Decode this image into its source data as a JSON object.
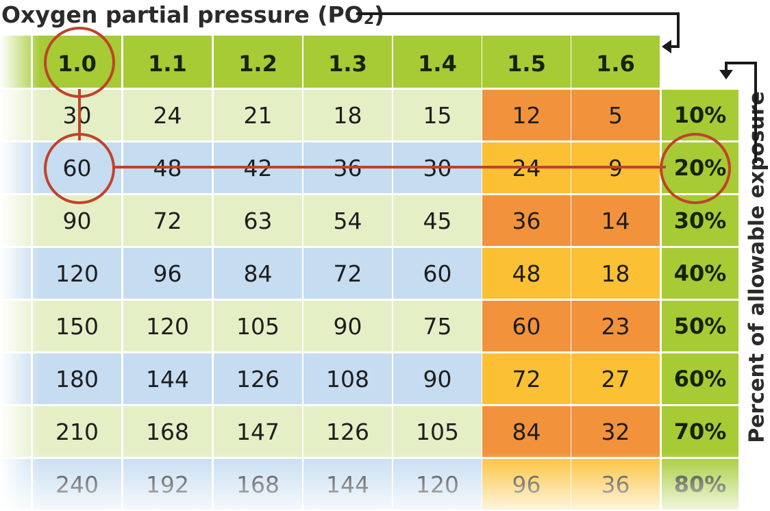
{
  "title": {
    "text": "Oxygen partial pressure (PO",
    "subscript": "2",
    "suffix": ")"
  },
  "side_label": "Percent of allowable exposure",
  "colors": {
    "header_green": "#a6cb35",
    "row_light_green": "#e5efc6",
    "row_blue": "#c5dcf1",
    "orange": "#f2923b",
    "yellow": "#fbc033",
    "highlight_red": "#c0422a"
  },
  "chart_data": {
    "type": "table",
    "columns": [
      "1.0",
      "1.1",
      "1.2",
      "1.3",
      "1.4",
      "1.5",
      "1.6"
    ],
    "row_labels": [
      "10%",
      "20%",
      "30%",
      "40%",
      "50%",
      "60%",
      "70%",
      "80%"
    ],
    "rows": [
      [
        30,
        24,
        21,
        18,
        15,
        12,
        5
      ],
      [
        60,
        48,
        42,
        36,
        30,
        24,
        9
      ],
      [
        90,
        72,
        63,
        54,
        45,
        36,
        14
      ],
      [
        120,
        96,
        84,
        72,
        60,
        48,
        18
      ],
      [
        150,
        120,
        105,
        90,
        75,
        60,
        23
      ],
      [
        180,
        144,
        126,
        108,
        90,
        72,
        27
      ],
      [
        210,
        168,
        147,
        126,
        105,
        84,
        32
      ],
      [
        240,
        192,
        168,
        144,
        120,
        96,
        36
      ]
    ],
    "highlight": {
      "column": "1.0",
      "row": "20%",
      "value": 60
    }
  }
}
